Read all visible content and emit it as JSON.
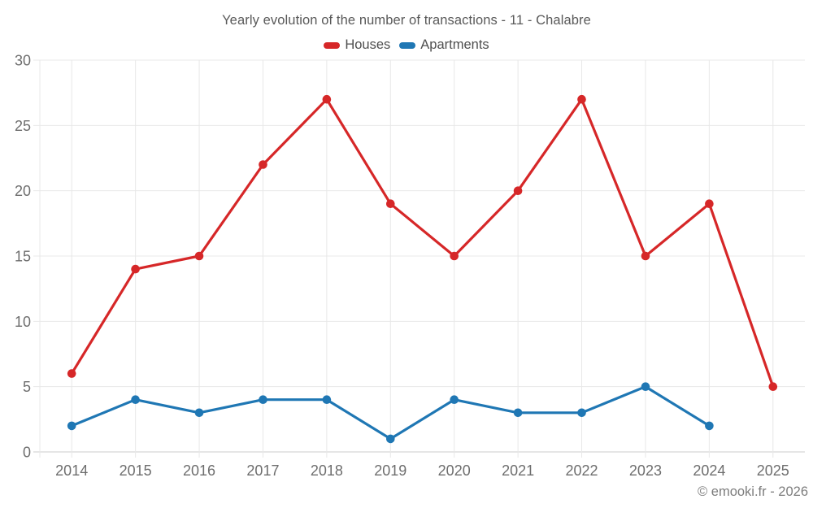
{
  "title": "Yearly evolution of the number of transactions - 11 - Chalabre",
  "legend": {
    "items": [
      {
        "label": "Houses",
        "color": "#d62728"
      },
      {
        "label": "Apartments",
        "color": "#1f77b4"
      }
    ]
  },
  "footer": {
    "copyright": "© emooki.fr - 2026"
  },
  "colors": {
    "houses": "#d62728",
    "apartments": "#1f77b4",
    "grid": "#e8e8e8",
    "axis": "#cccccc",
    "tick_text": "#6e6e6e",
    "title_text": "#595959",
    "legend_text": "#4f4f4f",
    "copyright_text": "#7d7d7d",
    "background": "#ffffff"
  },
  "chart_data": {
    "type": "line",
    "title": "Yearly evolution of the number of transactions - 11 - Chalabre",
    "categories": [
      "2014",
      "2015",
      "2016",
      "2017",
      "2018",
      "2019",
      "2020",
      "2021",
      "2022",
      "2023",
      "2024",
      "2025"
    ],
    "series": [
      {
        "name": "Houses",
        "color": "#d62728",
        "values": [
          6,
          14,
          15,
          22,
          27,
          19,
          15,
          20,
          27,
          15,
          19,
          5
        ]
      },
      {
        "name": "Apartments",
        "color": "#1f77b4",
        "values": [
          2,
          4,
          3,
          4,
          4,
          1,
          4,
          3,
          3,
          5,
          2,
          null
        ]
      }
    ],
    "xlabel": "",
    "ylabel": "",
    "ylim": [
      0,
      30
    ],
    "yticks": [
      0,
      5,
      10,
      15,
      20,
      25,
      30
    ],
    "grid": true,
    "legend_position": "top",
    "marker": "circle"
  }
}
